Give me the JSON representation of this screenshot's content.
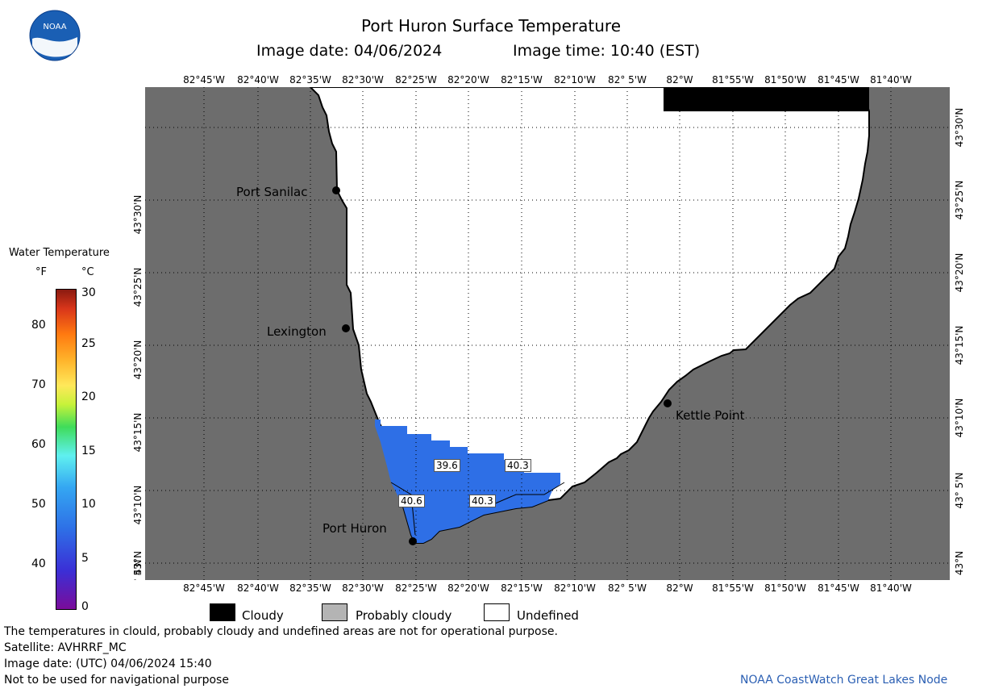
{
  "header": {
    "title": "Port Huron Surface Temperature",
    "image_date_label": "Image date: 04/06/2024",
    "image_time_label": "Image time: 10:40 (EST)"
  },
  "logo": {
    "text": "NOAA"
  },
  "map": {
    "lon_ticks": [
      "82°45'W",
      "82°40'W",
      "82°35'W",
      "82°30'W",
      "82°25'W",
      "82°20'W",
      "82°15'W",
      "82°10'W",
      "82° 5'W",
      "82°W",
      "81°55'W",
      "81°50'W",
      "81°45'W",
      "81°40'W"
    ],
    "lat_ticks": [
      "43°30'N",
      "43°25'N",
      "43°20'N",
      "43°15'N",
      "43°10'N",
      "43° 5'N",
      "43°N"
    ],
    "cities": [
      {
        "name": "Port Sanilac"
      },
      {
        "name": "Lexington"
      },
      {
        "name": "Kettle Point"
      },
      {
        "name": "Port Huron"
      }
    ],
    "temperature_labels": [
      "39.6",
      "40.3",
      "40.6",
      "40.3"
    ],
    "colors": {
      "land": "#6d6d6d",
      "cloudy": "#000000",
      "undefined": "#ffffff",
      "water": "#2e6fe6"
    }
  },
  "scale": {
    "title": "Water Temperature",
    "unit_f": "°F",
    "unit_c": "°C",
    "f_ticks": [
      "80",
      "70",
      "60",
      "50",
      "40"
    ],
    "c_ticks": [
      "30",
      "25",
      "20",
      "15",
      "10",
      "5",
      "0"
    ]
  },
  "legend": {
    "cloudy": "Cloudy",
    "probably_cloudy": "Probably cloudy",
    "undefined": "Undefined"
  },
  "footer": {
    "line1": "The temperatures in clould, probably cloudy and undefined areas are not for operational purpose.",
    "line2": "Satellite: AVHRRF_MC",
    "line3": "Image date: (UTC) 04/06/2024  15:40",
    "line4": "Not to be used for navigational purpose",
    "credit": "NOAA CoastWatch Great Lakes Node"
  }
}
